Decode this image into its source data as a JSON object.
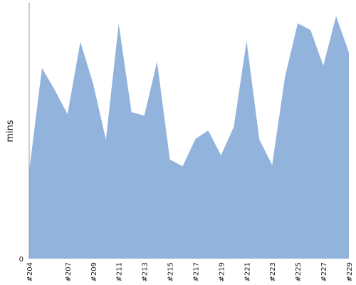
{
  "chart_data": {
    "type": "area",
    "title": "",
    "xlabel": "",
    "ylabel": "mins",
    "ylim": [
      0,
      100
    ],
    "y_ticks": [
      {
        "value": 0,
        "label": "0"
      }
    ],
    "grid": false,
    "legend": "none",
    "area_color": "#92b3dc",
    "axis_color": "#999999",
    "categories": [
      "#204",
      "#205",
      "#206",
      "#207",
      "#208",
      "#209",
      "#210",
      "#211",
      "#212",
      "#213",
      "#214",
      "#215",
      "#216",
      "#217",
      "#218",
      "#219",
      "#220",
      "#221",
      "#222",
      "#223",
      "#224",
      "#225",
      "#226",
      "#227",
      "#228",
      "#229"
    ],
    "x_tick_labels": [
      "#204",
      "#207",
      "#209",
      "#211",
      "#213",
      "#215",
      "#217",
      "#219",
      "#221",
      "#223",
      "#225",
      "#227",
      "#229"
    ],
    "series": [
      {
        "values": [
          34.3,
          74.5,
          65.9,
          56.5,
          84.8,
          68.4,
          46.5,
          91.8,
          57.3,
          55.9,
          77.0,
          38.8,
          36.1,
          46.8,
          50.1,
          40.4,
          51.5,
          85.1,
          46.5,
          36.6,
          71.0,
          92.0,
          89.4,
          75.4,
          94.8,
          80.6
        ]
      }
    ]
  }
}
